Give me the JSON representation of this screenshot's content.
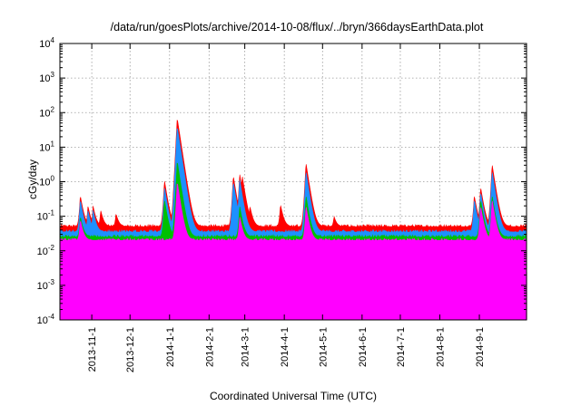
{
  "chart_data": {
    "type": "area",
    "title": "/data/run/goesPlots/archive/2014-10-08/flux/../bryn/366daysEarthData.plot",
    "xlabel": "Coordinated Universal Time (UTC)",
    "ylabel": "cGy/day",
    "yscale": "log",
    "ylim": [
      0.0001,
      10000
    ],
    "xlim": [
      "2013-10-07",
      "2014-10-08"
    ],
    "grid": true,
    "y_ticks": [
      {
        "base": "10",
        "exp": "-4",
        "value": 0.0001
      },
      {
        "base": "10",
        "exp": "-3",
        "value": 0.001
      },
      {
        "base": "10",
        "exp": "-2",
        "value": 0.01
      },
      {
        "base": "10",
        "exp": "-1",
        "value": 0.1
      },
      {
        "base": "10",
        "exp": "0",
        "value": 1
      },
      {
        "base": "10",
        "exp": "1",
        "value": 10
      },
      {
        "base": "10",
        "exp": "2",
        "value": 100
      },
      {
        "base": "10",
        "exp": "3",
        "value": 1000
      },
      {
        "base": "10",
        "exp": "4",
        "value": 10000
      }
    ],
    "x_ticks": [
      "2013-11-1",
      "2013-12-1",
      "2014-1-1",
      "2014-2-1",
      "2014-3-1",
      "2014-4-1",
      "2014-5-1",
      "2014-6-1",
      "2014-7-1",
      "2014-8-1",
      "2014-9-1"
    ],
    "series_colors": [
      "#ff0000",
      "#00c000",
      "#1e90ff",
      "#ff00ff"
    ],
    "series": [
      {
        "color": "#ff0000",
        "baseline": 0.05,
        "peaks": [
          {
            "date": "2013-10-23",
            "value": 0.4
          },
          {
            "date": "2013-10-29",
            "value": 0.2
          },
          {
            "date": "2013-11-02",
            "value": 0.2
          },
          {
            "date": "2013-11-08",
            "value": 0.15
          },
          {
            "date": "2013-11-20",
            "value": 0.12
          },
          {
            "date": "2013-12-28",
            "value": 1.1
          },
          {
            "date": "2014-01-07",
            "value": 70
          },
          {
            "date": "2014-01-09",
            "value": 10
          },
          {
            "date": "2014-01-15",
            "value": 0.2
          },
          {
            "date": "2014-02-20",
            "value": 1.5
          },
          {
            "date": "2014-02-25",
            "value": 1.7
          },
          {
            "date": "2014-02-27",
            "value": 1.5
          },
          {
            "date": "2014-03-05",
            "value": 0.2
          },
          {
            "date": "2014-03-29",
            "value": 0.22
          },
          {
            "date": "2014-04-18",
            "value": 3.5
          },
          {
            "date": "2014-04-20",
            "value": 0.3
          },
          {
            "date": "2014-05-10",
            "value": 0.1
          },
          {
            "date": "2014-08-28",
            "value": 0.4
          },
          {
            "date": "2014-09-02",
            "value": 0.7
          },
          {
            "date": "2014-09-11",
            "value": 3.2
          },
          {
            "date": "2014-09-14",
            "value": 0.6
          }
        ]
      },
      {
        "color": "#00c000",
        "baseline": 0.025,
        "peaks": [
          {
            "date": "2013-10-23",
            "value": 0.1
          },
          {
            "date": "2013-12-28",
            "value": 0.3
          },
          {
            "date": "2014-01-07",
            "value": 4
          },
          {
            "date": "2014-02-25",
            "value": 0.2
          },
          {
            "date": "2014-04-18",
            "value": 0.4
          },
          {
            "date": "2014-09-02",
            "value": 0.3
          },
          {
            "date": "2014-09-11",
            "value": 0.4
          }
        ]
      },
      {
        "color": "#1e90ff",
        "baseline": 0.035,
        "peaks": [
          {
            "date": "2013-10-23",
            "value": 0.3
          },
          {
            "date": "2013-10-29",
            "value": 0.15
          },
          {
            "date": "2013-11-02",
            "value": 0.15
          },
          {
            "date": "2013-12-28",
            "value": 0.7
          },
          {
            "date": "2014-01-07",
            "value": 40
          },
          {
            "date": "2014-01-09",
            "value": 6
          },
          {
            "date": "2014-02-20",
            "value": 1
          },
          {
            "date": "2014-02-25",
            "value": 1.2
          },
          {
            "date": "2014-04-18",
            "value": 2
          },
          {
            "date": "2014-08-28",
            "value": 0.3
          },
          {
            "date": "2014-09-02",
            "value": 0.5
          },
          {
            "date": "2014-09-11",
            "value": 2
          }
        ]
      },
      {
        "color": "#ff00ff",
        "baseline": 0.02,
        "floor": 0.003,
        "peaks": [
          {
            "date": "2013-10-23",
            "value": 0.08
          },
          {
            "date": "2014-01-07",
            "value": 1
          },
          {
            "date": "2014-02-25",
            "value": 0.1
          },
          {
            "date": "2014-04-18",
            "value": 0.2
          },
          {
            "date": "2014-09-02",
            "value": 0.2
          },
          {
            "date": "2014-09-11",
            "value": 0.3
          }
        ]
      }
    ]
  }
}
